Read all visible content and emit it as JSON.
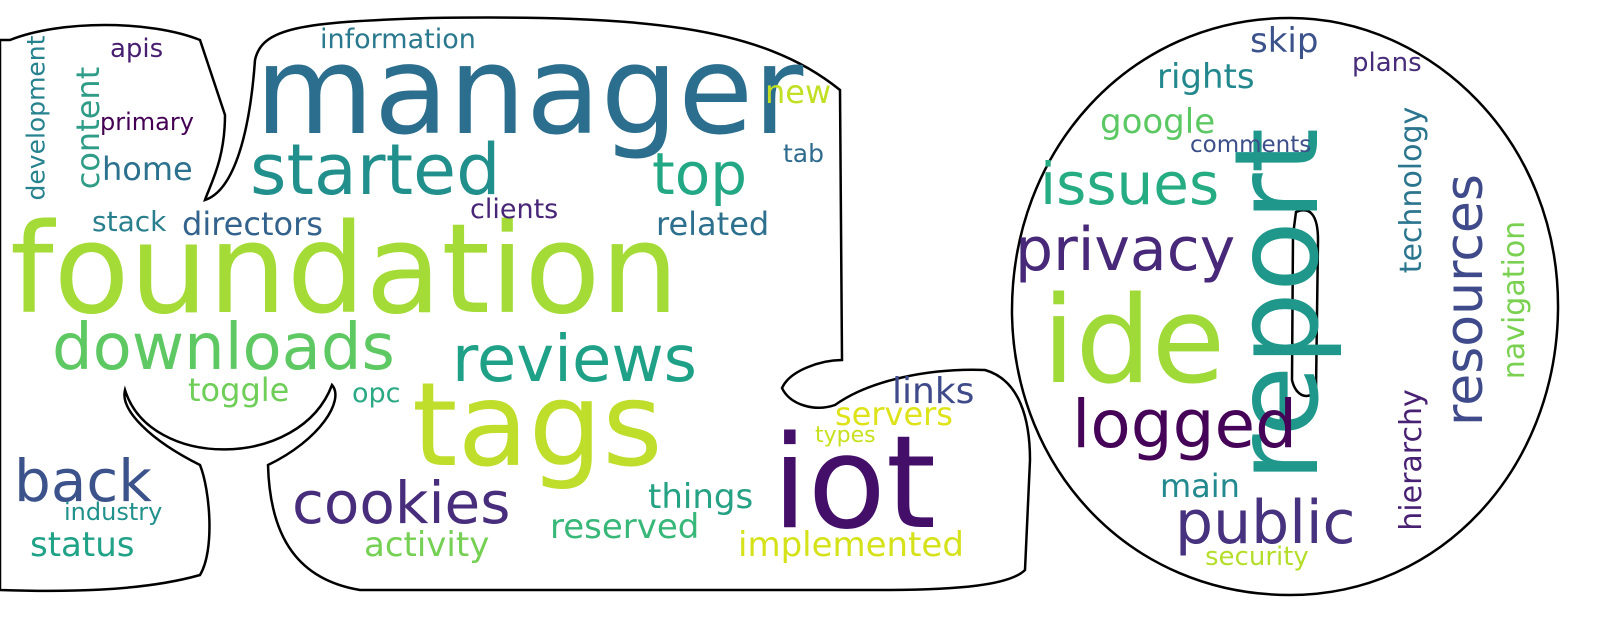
{
  "words": [
    {
      "text": "manager",
      "color": "#2c6e8e"
    },
    {
      "text": "foundation",
      "color": "#a5db36"
    },
    {
      "text": "started",
      "color": "#21908d"
    },
    {
      "text": "top",
      "color": "#22a884"
    },
    {
      "text": "downloads",
      "color": "#5ec962"
    },
    {
      "text": "reviews",
      "color": "#1fa188"
    },
    {
      "text": "tags",
      "color": "#bfdd2b"
    },
    {
      "text": "iot",
      "color": "#440f69"
    },
    {
      "text": "back",
      "color": "#3b528b"
    },
    {
      "text": "cookies",
      "color": "#472d7b"
    },
    {
      "text": "ide",
      "color": "#a0da39"
    },
    {
      "text": "report",
      "color": "#1f988b"
    },
    {
      "text": "logged",
      "color": "#450457"
    },
    {
      "text": "public",
      "color": "#46327e"
    },
    {
      "text": "privacy",
      "color": "#482878"
    },
    {
      "text": "issues",
      "color": "#25ac82"
    },
    {
      "text": "resources",
      "color": "#3f4a8a"
    },
    {
      "text": "information",
      "color": "#2a788e"
    },
    {
      "text": "apis",
      "color": "#481f70"
    },
    {
      "text": "development",
      "color": "#26828e"
    },
    {
      "text": "content",
      "color": "#2f9c88"
    },
    {
      "text": "primary",
      "color": "#440154"
    },
    {
      "text": "home",
      "color": "#2c728e"
    },
    {
      "text": "new",
      "color": "#c2df23"
    },
    {
      "text": "tab",
      "color": "#2f6b8e"
    },
    {
      "text": "stack",
      "color": "#2a7f8e"
    },
    {
      "text": "directors",
      "color": "#33638d"
    },
    {
      "text": "clients",
      "color": "#482576"
    },
    {
      "text": "related",
      "color": "#2d708e"
    },
    {
      "text": "toggle",
      "color": "#6ece58"
    },
    {
      "text": "opc",
      "color": "#2aa984"
    },
    {
      "text": "links",
      "color": "#3e4a89"
    },
    {
      "text": "servers",
      "color": "#dde318"
    },
    {
      "text": "types",
      "color": "#c8e020"
    },
    {
      "text": "things",
      "color": "#25a183"
    },
    {
      "text": "industry",
      "color": "#21918c"
    },
    {
      "text": "status",
      "color": "#1fa287"
    },
    {
      "text": "activity",
      "color": "#75d054"
    },
    {
      "text": "reserved",
      "color": "#37b878"
    },
    {
      "text": "implemented",
      "color": "#d5e21a"
    },
    {
      "text": "skip",
      "color": "#3b528b"
    },
    {
      "text": "plans",
      "color": "#472c7a"
    },
    {
      "text": "rights",
      "color": "#23888e"
    },
    {
      "text": "google",
      "color": "#5cc863"
    },
    {
      "text": "comments",
      "color": "#3c4f8a"
    },
    {
      "text": "technology",
      "color": "#2b758e"
    },
    {
      "text": "navigation",
      "color": "#7ad151"
    },
    {
      "text": "hierarchy",
      "color": "#482173"
    },
    {
      "text": "main",
      "color": "#23898e"
    },
    {
      "text": "security",
      "color": "#b5de2b"
    }
  ]
}
